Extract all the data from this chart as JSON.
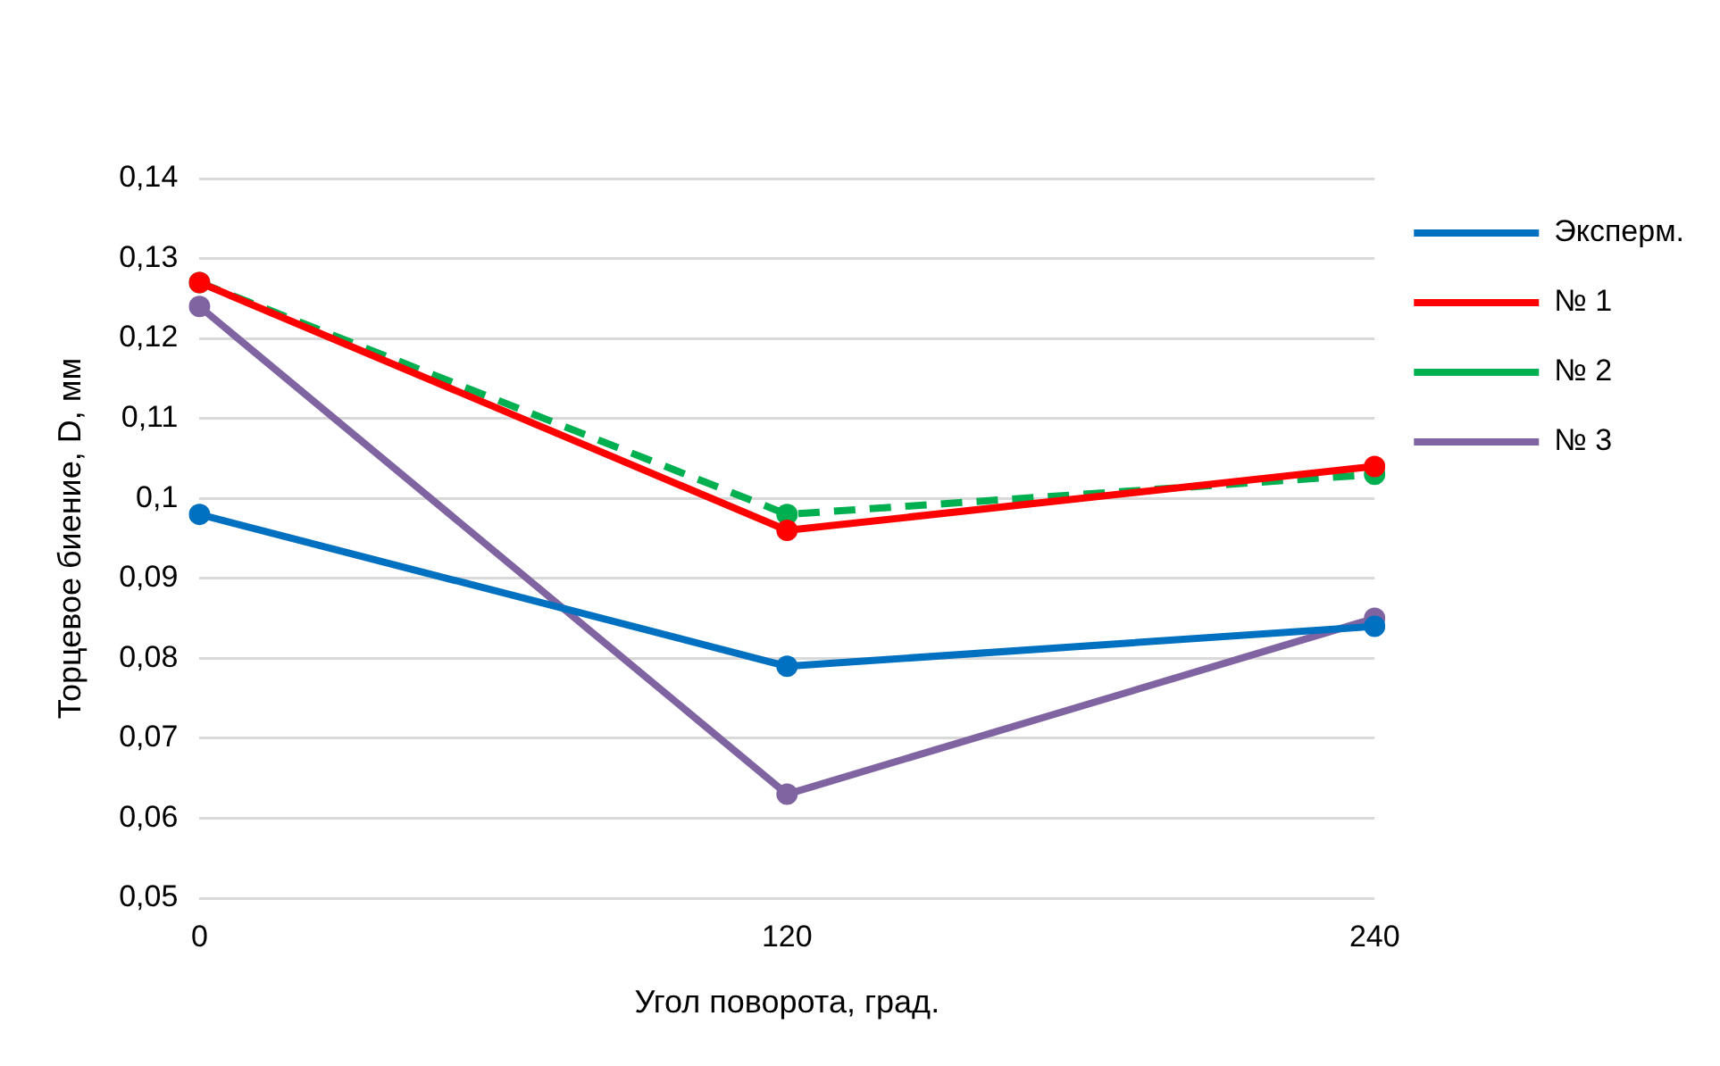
{
  "chart_data": {
    "type": "line",
    "xlabel": "Угол поворота, град.",
    "ylabel": "Торцевое биение, D, мм",
    "categories": [
      "0",
      "120",
      "240"
    ],
    "series": [
      {
        "name": "Эксперм.",
        "color": "#0070c0",
        "values": [
          0.098,
          0.079,
          0.084
        ]
      },
      {
        "name": "№ 1",
        "color": "#ff0000",
        "values": [
          0.127,
          0.096,
          0.104
        ]
      },
      {
        "name": "№ 2",
        "color": "#00b050",
        "values": [
          0.127,
          0.098,
          0.103
        ],
        "line_style": "dashed"
      },
      {
        "name": "№ 3",
        "color": "#8064a2",
        "values": [
          0.124,
          0.063,
          0.085
        ]
      }
    ],
    "ylim": [
      0.05,
      0.14
    ],
    "yticks": [
      {
        "value": 0.05,
        "label": "0,05"
      },
      {
        "value": 0.06,
        "label": "0,06"
      },
      {
        "value": 0.07,
        "label": "0,07"
      },
      {
        "value": 0.08,
        "label": "0,08"
      },
      {
        "value": 0.09,
        "label": "0,09"
      },
      {
        "value": 0.1,
        "label": "0,1"
      },
      {
        "value": 0.11,
        "label": "0,11"
      },
      {
        "value": 0.12,
        "label": "0,12"
      },
      {
        "value": 0.13,
        "label": "0,13"
      },
      {
        "value": 0.14,
        "label": "0,14"
      }
    ],
    "grid": "y",
    "legend": "right",
    "marker": "circle"
  }
}
